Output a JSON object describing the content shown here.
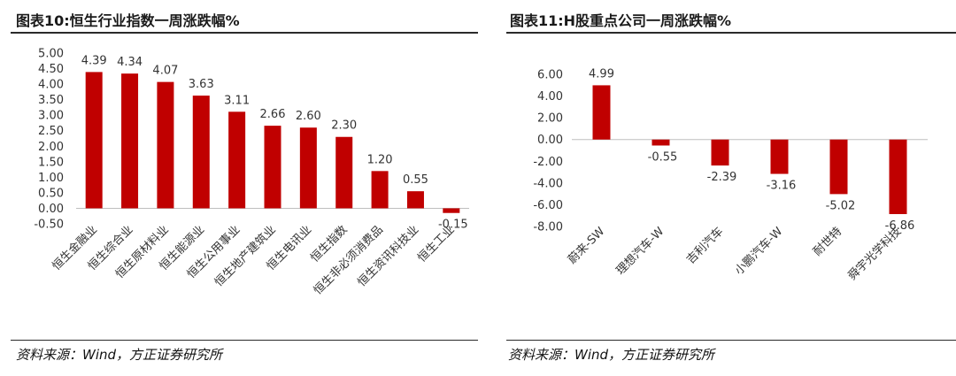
{
  "charts": [
    {
      "title": "图表10:恒生行业指数一周涨跌幅%",
      "source": "资料来源：Wind，方正证券研究所"
    },
    {
      "title": "图表11:H股重点公司一周涨跌幅%",
      "source": "资料来源：Wind，方正证券研究所"
    }
  ],
  "colors": {
    "bar": "#c00000",
    "rule": "#2a2a2a"
  },
  "chart_data": [
    {
      "type": "bar",
      "title": "图表10:恒生行业指数一周涨跌幅%",
      "categories": [
        "恒生金融业",
        "恒生综合业",
        "恒生原材料业",
        "恒生能源业",
        "恒生公用事业",
        "恒生地产建筑业",
        "恒生电讯业",
        "恒生指数",
        "恒生非必须消费品",
        "恒生资讯科技业",
        "恒生工业"
      ],
      "values": [
        4.39,
        4.34,
        4.07,
        3.63,
        3.11,
        2.66,
        2.6,
        2.3,
        1.2,
        0.55,
        -0.15
      ],
      "data_labels": [
        "4.39",
        "4.34",
        "4.07",
        "3.63",
        "3.11",
        "2.66",
        "2.60",
        "2.30",
        "1.20",
        "0.55",
        "-0.15"
      ],
      "yticks": [
        "5.00",
        "4.50",
        "4.00",
        "3.50",
        "3.00",
        "2.50",
        "2.00",
        "1.50",
        "1.00",
        "0.50",
        "0.00",
        "-0.50"
      ],
      "ylim": [
        -0.5,
        5.0
      ],
      "grid": false,
      "legend": "none"
    },
    {
      "type": "bar",
      "title": "图表11:H股重点公司一周涨跌幅%",
      "categories": [
        "蔚来-SW",
        "理想汽车-W",
        "吉利汽车",
        "小鹏汽车-W",
        "耐世特",
        "舜宇光学科技"
      ],
      "values": [
        4.99,
        -0.55,
        -2.39,
        -3.16,
        -5.02,
        -6.86
      ],
      "data_labels": [
        "4.99",
        "-0.55",
        "-2.39",
        "-3.16",
        "-5.02",
        "-6.86"
      ],
      "yticks": [
        "6.00",
        "4.00",
        "2.00",
        "0.00",
        "-2.00",
        "-4.00",
        "-6.00",
        "-8.00"
      ],
      "ylim": [
        -8.0,
        6.0
      ],
      "grid": false,
      "legend": "none"
    }
  ]
}
